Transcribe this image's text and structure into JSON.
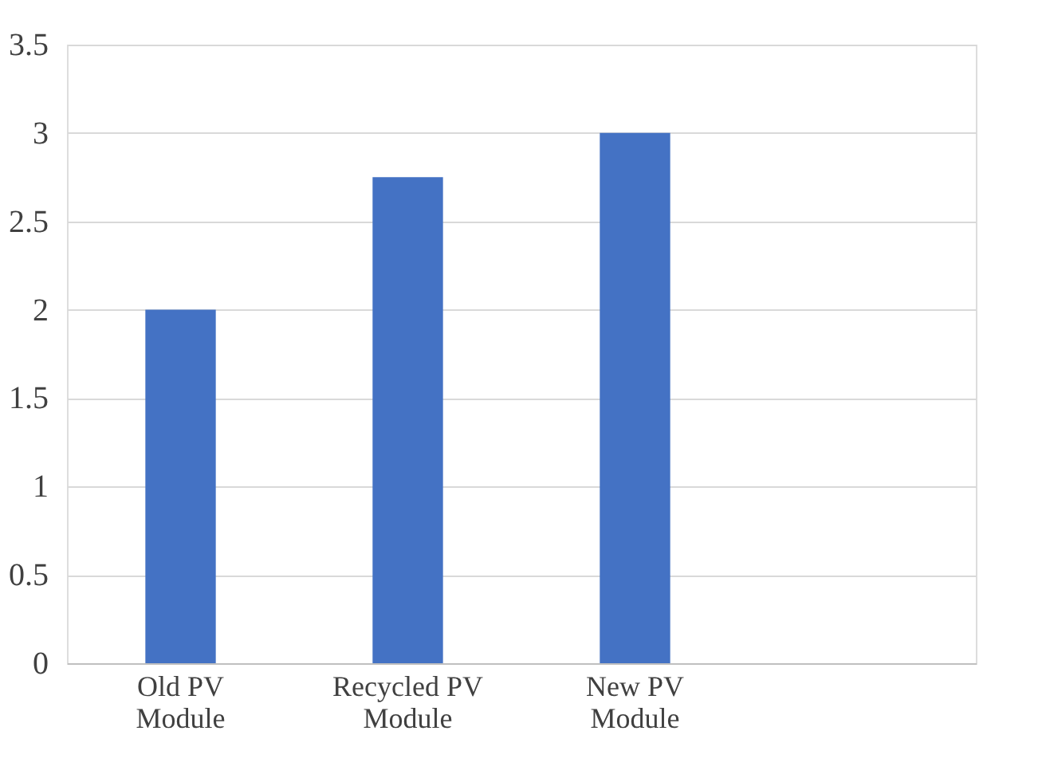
{
  "chart_data": {
    "type": "bar",
    "categories": [
      "Old PV Module",
      "Recycled PV Module",
      "New PV Module",
      null
    ],
    "values": [
      2,
      2.75,
      3,
      null
    ],
    "color": "#4472c4",
    "ylim": [
      0,
      3.5
    ],
    "yticks": [
      0,
      0.5,
      1,
      1.5,
      2,
      2.5,
      3,
      3.5
    ],
    "grid": "y"
  }
}
